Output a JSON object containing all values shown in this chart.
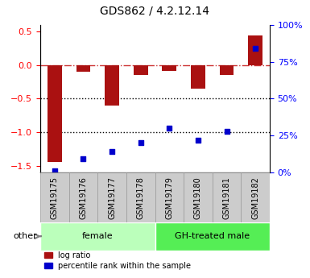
{
  "title": "GDS862 / 4.2.12.14",
  "samples": [
    "GSM19175",
    "GSM19176",
    "GSM19177",
    "GSM19178",
    "GSM19179",
    "GSM19180",
    "GSM19181",
    "GSM19182"
  ],
  "log_ratio": [
    -1.45,
    -0.1,
    -0.6,
    -0.15,
    -0.08,
    -0.35,
    -0.15,
    0.45
  ],
  "percentile_rank": [
    1,
    9,
    14,
    20,
    30,
    22,
    28,
    84
  ],
  "groups": [
    {
      "label": "female",
      "start": 0,
      "end": 3,
      "color": "#bbffbb"
    },
    {
      "label": "GH-treated male",
      "start": 4,
      "end": 7,
      "color": "#55ee55"
    }
  ],
  "bar_color": "#aa1111",
  "dot_color": "#0000cc",
  "ylim_left": [
    -1.6,
    0.6
  ],
  "ylim_right": [
    0,
    100
  ],
  "yticks_left": [
    -1.5,
    -1.0,
    -0.5,
    0.0,
    0.5
  ],
  "yticks_right": [
    0,
    25,
    50,
    75,
    100
  ],
  "hline_zero_color": "#cc3333",
  "hline_dotted_color": "black",
  "bar_width": 0.5,
  "legend_log_ratio": "log ratio",
  "legend_percentile": "percentile rank within the sample",
  "sample_box_color": "#cccccc",
  "sample_box_edge": "#999999"
}
